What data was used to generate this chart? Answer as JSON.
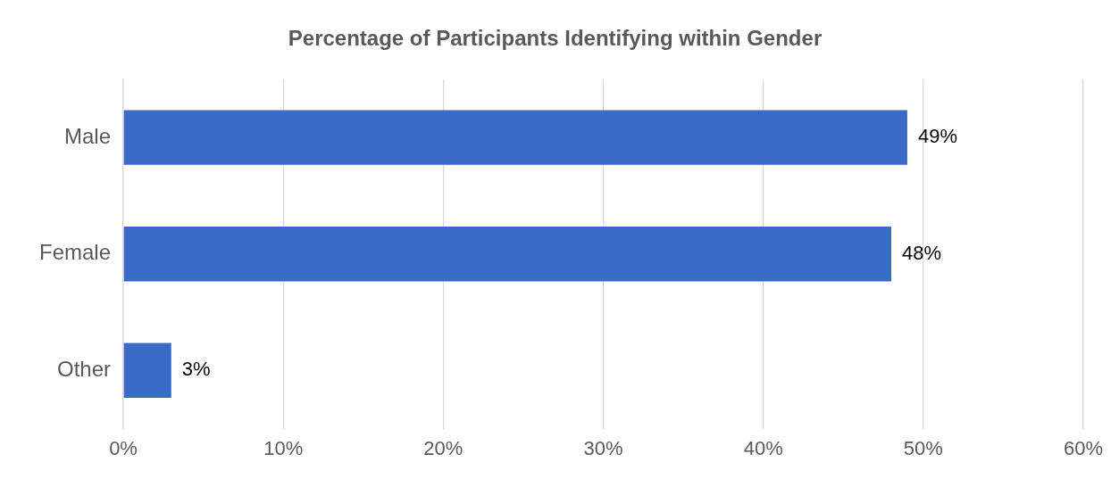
{
  "chart_data": {
    "type": "bar",
    "orientation": "horizontal",
    "title": "Percentage of Participants Identifying within Gender",
    "categories": [
      "Male",
      "Female",
      "Other"
    ],
    "values": [
      49,
      48,
      3
    ],
    "value_labels": [
      "49%",
      "48%",
      "3%"
    ],
    "color": "#3a6bc8",
    "xlim": [
      0,
      60
    ],
    "xticks": [
      {
        "value": 0,
        "label": "0%"
      },
      {
        "value": 10,
        "label": "10%"
      },
      {
        "value": 20,
        "label": "20%"
      },
      {
        "value": 30,
        "label": "30%"
      },
      {
        "value": 40,
        "label": "40%"
      },
      {
        "value": 50,
        "label": "50%"
      },
      {
        "value": 60,
        "label": "60%"
      }
    ],
    "grid": "x",
    "legend": false
  }
}
